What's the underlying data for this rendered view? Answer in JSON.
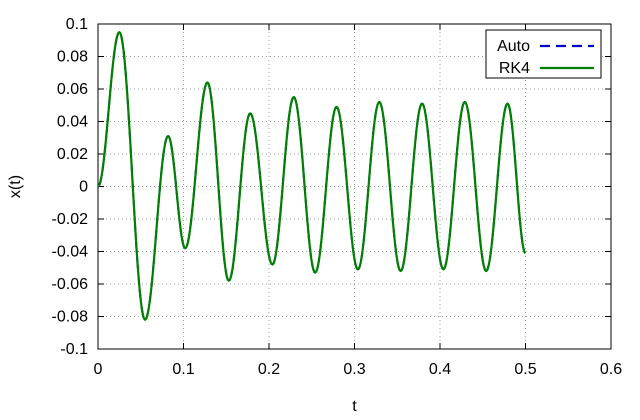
{
  "chart_data": {
    "type": "line",
    "title": "",
    "xlabel": "t",
    "ylabel": "x(t)",
    "xlim": [
      0,
      0.6
    ],
    "ylim": [
      -0.1,
      0.1
    ],
    "xticks": [
      "0",
      "0.1",
      "0.2",
      "0.3",
      "0.4",
      "0.5",
      "0.6"
    ],
    "yticks": [
      "0.1",
      "0.08",
      "0.06",
      "0.04",
      "0.02",
      "0",
      "-0.02",
      "-0.04",
      "-0.06",
      "-0.08",
      "-0.1"
    ],
    "grid": true,
    "legend_position": "top-right",
    "series": [
      {
        "name": "Auto",
        "color": "#0000cc",
        "style": "dashed",
        "x": [
          0,
          0.025,
          0.055,
          0.082,
          0.102,
          0.128,
          0.153,
          0.178,
          0.204,
          0.229,
          0.254,
          0.279,
          0.304,
          0.329,
          0.354,
          0.379,
          0.404,
          0.429,
          0.454,
          0.479,
          0.5
        ],
        "y": [
          0,
          0.095,
          -0.082,
          0.031,
          -0.038,
          0.064,
          -0.058,
          0.045,
          -0.048,
          0.055,
          -0.053,
          0.049,
          -0.051,
          0.052,
          -0.052,
          0.051,
          -0.051,
          0.052,
          -0.052,
          0.051,
          -0.041
        ]
      },
      {
        "name": "RK4",
        "color": "#008000",
        "style": "solid",
        "x": [
          0,
          0.025,
          0.055,
          0.082,
          0.102,
          0.128,
          0.153,
          0.178,
          0.204,
          0.229,
          0.254,
          0.279,
          0.304,
          0.329,
          0.354,
          0.379,
          0.404,
          0.429,
          0.454,
          0.479,
          0.5
        ],
        "y": [
          0,
          0.095,
          -0.082,
          0.031,
          -0.038,
          0.064,
          -0.058,
          0.045,
          -0.048,
          0.055,
          -0.053,
          0.049,
          -0.051,
          0.052,
          -0.052,
          0.051,
          -0.051,
          0.052,
          -0.052,
          0.051,
          -0.041
        ]
      }
    ]
  }
}
